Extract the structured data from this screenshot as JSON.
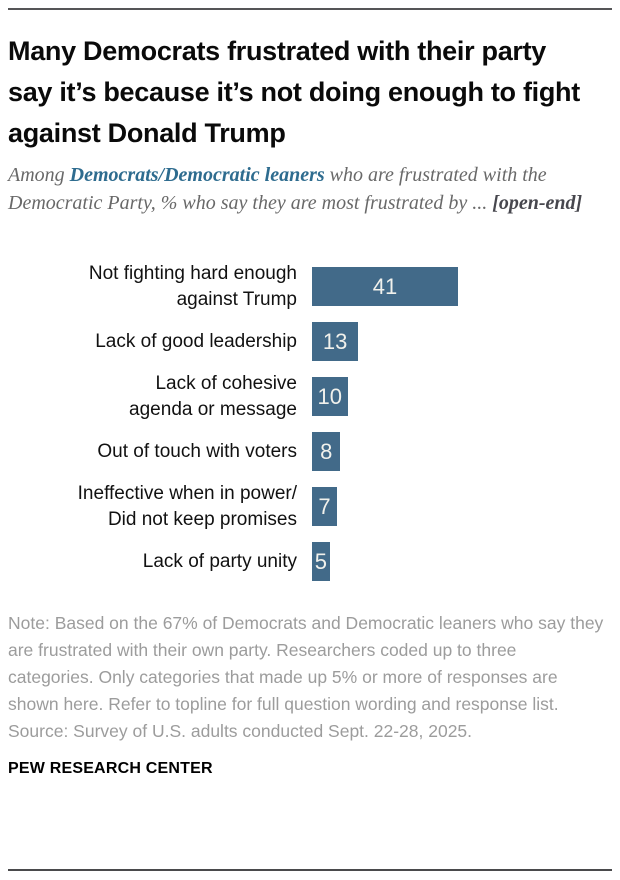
{
  "header": {
    "title": "Many Democrats frustrated with their party say it’s because it’s not doing enough to fight against Donald Trump"
  },
  "subtitle": {
    "prefix": "Among ",
    "highlight": "Democrats/Democratic leaners",
    "middle": " who are frustrated with the Democratic Party, % who say they are most frustrated by ... ",
    "suffix": "[open-end]"
  },
  "chart_data": {
    "type": "bar",
    "orientation": "horizontal",
    "categories": [
      "Not fighting hard enough\nagainst Trump",
      "Lack of good leadership",
      "Lack of cohesive\nagenda or message",
      "Out of touch with voters",
      "Ineffective when in power/\nDid not keep promises",
      "Lack of party unity"
    ],
    "values": [
      41,
      13,
      10,
      8,
      7,
      5
    ],
    "value_unit": "%",
    "xlim": [
      0,
      45
    ],
    "bar_color": "#426a89",
    "value_label_color": "#f1f1ec",
    "grid": false,
    "legend": false
  },
  "footer": {
    "note": "Note: Based on the 67% of Democrats and Democratic leaners who say they are frustrated with their own party. Researchers coded up to three categories. Only categories that made up 5% or more of responses are shown here. Refer to topline for full question wording and response list.",
    "source": "Source: Survey of U.S. adults conducted Sept. 22-28, 2025.",
    "brand": "PEW RESEARCH CENTER"
  },
  "colors": {
    "bar": "#426a89",
    "subtitle_highlight": "#2e6c8f",
    "note_gray": "#9c9c9c"
  }
}
